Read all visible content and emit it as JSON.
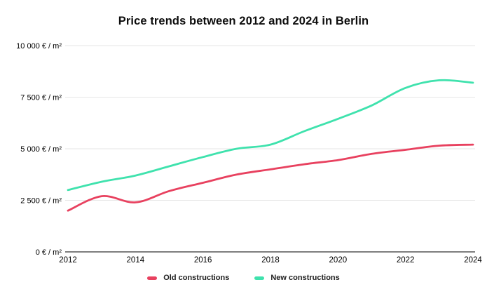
{
  "title": "Price trends between 2012 and 2024 in Berlin",
  "colors": {
    "old_constructions": "#e8415f",
    "new_constructions": "#3fe2ad",
    "gridline": "#e6e6e6",
    "axis_line": "#333333",
    "tick_text": "#000000",
    "legend_text": "#212121"
  },
  "legend": {
    "items": [
      {
        "label": "Old constructions",
        "color": "#e8415f"
      },
      {
        "label": "New constructions",
        "color": "#3fe2ad"
      }
    ]
  },
  "y_axis": {
    "ticks": [
      {
        "label": "10 000 € / m²",
        "value": 10000
      },
      {
        "label": "7 500 € / m²",
        "value": 7500
      },
      {
        "label": "5 000 € / m²",
        "value": 5000
      },
      {
        "label": "2 500 € / m²",
        "value": 2500
      },
      {
        "label": "0 € / m²",
        "value": 0
      }
    ]
  },
  "x_axis": {
    "ticks": [
      {
        "label": "2012",
        "value": 2012
      },
      {
        "label": "2014",
        "value": 2014
      },
      {
        "label": "2016",
        "value": 2016
      },
      {
        "label": "2018",
        "value": 2018
      },
      {
        "label": "2020",
        "value": 2020
      },
      {
        "label": "2022",
        "value": 2022
      },
      {
        "label": "2024",
        "value": 2024
      }
    ]
  },
  "chart_data": {
    "type": "line",
    "title": "Price trends between 2012 and 2024 in Berlin",
    "xlabel": "",
    "ylabel": "€ / m²",
    "x": [
      2012,
      2013,
      2014,
      2015,
      2016,
      2017,
      2018,
      2019,
      2020,
      2021,
      2022,
      2023,
      2024
    ],
    "series": [
      {
        "name": "Old constructions",
        "color": "#e8415f",
        "values": [
          2000,
          2700,
          2400,
          2950,
          3350,
          3750,
          4000,
          4250,
          4450,
          4750,
          4950,
          5150,
          5200
        ]
      },
      {
        "name": "New constructions",
        "color": "#3fe2ad",
        "values": [
          3000,
          3400,
          3700,
          4150,
          4600,
          5000,
          5200,
          5850,
          6450,
          7100,
          7950,
          8320,
          8200
        ]
      }
    ],
    "xlim": [
      2012,
      2024
    ],
    "ylim": [
      0,
      10000
    ],
    "grid": true,
    "curve": "smooth",
    "legend_position": "bottom"
  }
}
